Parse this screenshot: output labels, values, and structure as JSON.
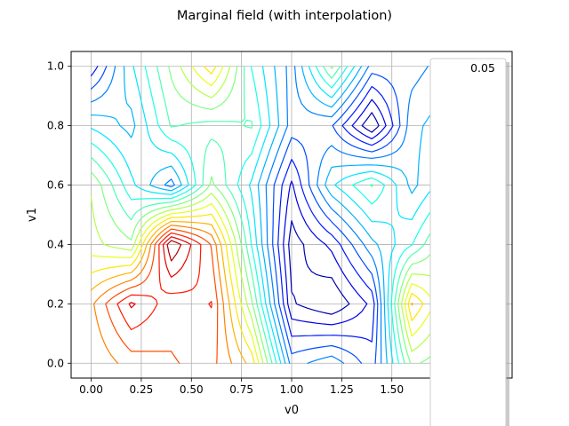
{
  "chart_data": {
    "type": "contour",
    "title": "Marginal field (with interpolation)",
    "xlabel": "v0",
    "ylabel": "v1",
    "xlim": [
      -0.1,
      2.1
    ],
    "ylim": [
      -0.05,
      1.05
    ],
    "data_extent": {
      "x": [
        0.0,
        2.0
      ],
      "y": [
        0.0,
        1.0
      ]
    },
    "grid": true,
    "x_ticks": [
      0.0,
      0.25,
      0.5,
      0.75,
      1.0,
      1.25,
      1.5
    ],
    "x_tick_labels": [
      "0.00",
      "0.25",
      "0.50",
      "0.75",
      "1.00",
      "1.25",
      "1.50"
    ],
    "y_ticks": [
      0.0,
      0.2,
      0.4,
      0.6,
      0.8,
      1.0
    ],
    "y_tick_labels": [
      "0.0",
      "0.2",
      "0.4",
      "0.6",
      "0.8",
      "1.0"
    ],
    "colormap": "jet",
    "level_count": 20,
    "legend": {
      "placement": "right",
      "entries": [
        "0.05"
      ]
    },
    "field": {
      "x": [
        0.0,
        0.2,
        0.4,
        0.6,
        0.8,
        1.0,
        1.2,
        1.4,
        1.6,
        1.8,
        2.0
      ],
      "y": [
        0.0,
        0.2,
        0.4,
        0.6,
        0.8,
        1.0
      ],
      "values": [
        [
          0.72,
          0.78,
          0.8,
          0.82,
          0.7,
          0.3,
          0.35,
          0.25,
          0.55,
          0.5,
          0.45
        ],
        [
          0.75,
          0.9,
          0.82,
          0.85,
          0.55,
          0.15,
          0.1,
          0.2,
          0.72,
          0.55,
          0.5
        ],
        [
          0.6,
          0.55,
          0.98,
          0.8,
          0.45,
          0.12,
          0.2,
          0.35,
          0.45,
          0.6,
          0.55
        ],
        [
          0.58,
          0.42,
          0.3,
          0.55,
          0.4,
          0.18,
          0.4,
          0.5,
          0.35,
          0.45,
          0.4
        ],
        [
          0.4,
          0.35,
          0.5,
          0.48,
          0.5,
          0.3,
          0.28,
          0.1,
          0.35,
          0.4,
          0.45
        ],
        [
          0.2,
          0.4,
          0.55,
          0.7,
          0.45,
          0.3,
          0.55,
          0.3,
          0.3,
          0.35,
          0.4
        ]
      ]
    }
  }
}
